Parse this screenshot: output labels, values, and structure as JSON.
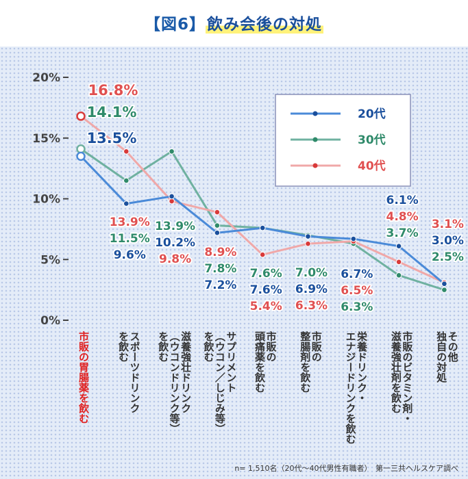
{
  "title_bracket": "【図6】",
  "title_main": "飲み会後の対処",
  "footnote": "n= 1,510名（20代〜40代男性有職者）　第一三共ヘルスケア調べ",
  "colors": {
    "s20": "#4a8ad8",
    "s30": "#6fb1a0",
    "s40": "#f0a8a8",
    "lab20": "#1a4f9c",
    "lab30": "#2f8a6a",
    "lab40": "#e05050",
    "highlight": "#e02020",
    "cat": "#333333"
  },
  "chart_data": {
    "type": "line",
    "categories": [
      "市販の胃腸薬を飲む",
      "スポーツドリンクを飲む",
      "滋養強壮ドリンク（ウコンドリンク等）を飲む",
      "サプリメント（ウコン／しじみ等）を飲む",
      "市販の頭痛薬を飲む",
      "市販の整腸剤を飲む",
      "栄養ドリンク・エナジードリンクを飲む",
      "市販のビタミン剤・滋養強壮剤を飲む",
      "その他独自の対処"
    ],
    "category_lines": [
      [
        "市販の胃腸薬を飲む"
      ],
      [
        "スポーツドリンク",
        "を飲む"
      ],
      [
        "滋養強壮ドリンク",
        "（ウコンドリンク等）",
        "を飲む"
      ],
      [
        "サプリメント",
        "（ウコン／しじみ等）",
        "を飲む"
      ],
      [
        "市販の",
        "頭痛薬を飲む"
      ],
      [
        "市販の",
        "整腸剤を飲む"
      ],
      [
        "栄養ドリンク・",
        "エナジードリンクを飲む"
      ],
      [
        "市販のビタミン剤・",
        "滋養強壮剤を飲む"
      ],
      [
        "その他",
        "独自の対処"
      ]
    ],
    "series": [
      {
        "name": "20代",
        "values": [
          13.5,
          9.6,
          10.2,
          7.2,
          7.6,
          6.9,
          6.7,
          6.1,
          3.0
        ],
        "labels": [
          "13.5%",
          "9.6%",
          "10.2%",
          "7.2%",
          "7.6%",
          "6.9%",
          "6.7%",
          "6.1%",
          "3.0%"
        ]
      },
      {
        "name": "30代",
        "values": [
          14.1,
          11.5,
          13.9,
          7.8,
          7.6,
          7.0,
          6.3,
          3.7,
          2.5
        ],
        "labels": [
          "14.1%",
          "11.5%",
          "13.9%",
          "7.8%",
          "7.6%",
          "7.0%",
          "6.3%",
          "3.7%",
          "2.5%"
        ]
      },
      {
        "name": "40代",
        "values": [
          16.8,
          13.9,
          9.8,
          8.9,
          5.4,
          6.3,
          6.5,
          4.8,
          3.1
        ],
        "labels": [
          "16.8%",
          "13.9%",
          "9.8%",
          "8.9%",
          "5.4%",
          "6.3%",
          "6.5%",
          "4.8%",
          "3.1%"
        ]
      }
    ],
    "yticks": [
      "0%",
      "5%",
      "10%",
      "15%",
      "20%"
    ],
    "ylim": [
      0,
      20
    ],
    "legend_position": "top-right"
  }
}
